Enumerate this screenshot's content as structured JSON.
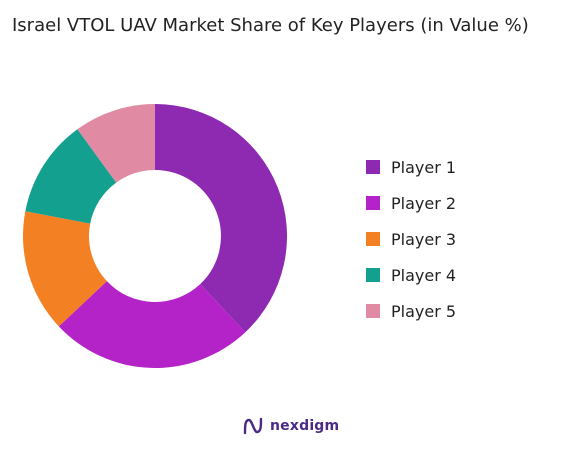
{
  "chart_data": {
    "type": "pie",
    "variant": "donut",
    "title": "Israel VTOL UAV Market Share of Key Players (in Value %)",
    "categories": [
      "Player 1",
      "Player 2",
      "Player 3",
      "Player 4",
      "Player 5"
    ],
    "values": [
      38,
      25,
      15,
      12,
      10
    ],
    "unit": "%",
    "colors": [
      "#8e29b1",
      "#b423c7",
      "#f48024",
      "#14a08e",
      "#e08aa3"
    ],
    "start_angle_deg": 0,
    "direction": "clockwise",
    "legend_position": "right"
  },
  "branding": {
    "logo_text": "nexdigm",
    "logo_icon": "nexdigm-logo-icon"
  }
}
